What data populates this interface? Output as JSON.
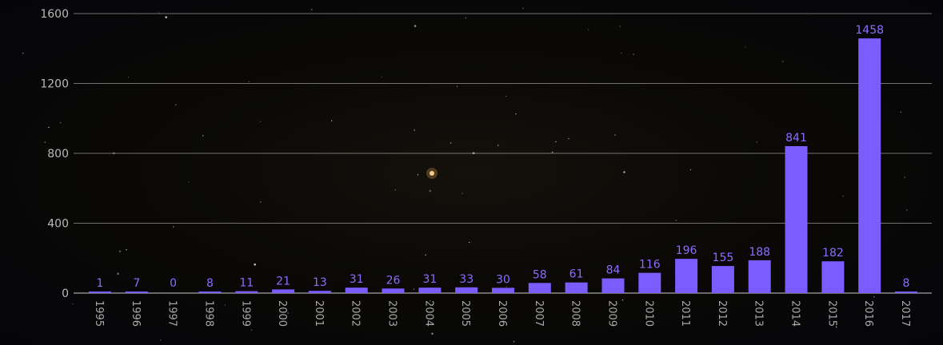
{
  "chart_data": {
    "type": "bar",
    "categories": [
      "1995",
      "1996",
      "1997",
      "1998",
      "1999",
      "2000",
      "2001",
      "2002",
      "2003",
      "2004",
      "2005",
      "2006",
      "2007",
      "2008",
      "2009",
      "2010",
      "2011",
      "2012",
      "2013",
      "2014",
      "2015",
      "2016",
      "2017"
    ],
    "values": [
      1,
      7,
      0,
      8,
      11,
      21,
      13,
      31,
      26,
      31,
      33,
      30,
      58,
      61,
      84,
      116,
      196,
      155,
      188,
      841,
      182,
      1458,
      8
    ],
    "ytick_labels": [
      "0",
      "400",
      "800",
      "1200",
      "1600"
    ],
    "ylim": [
      0,
      1600
    ],
    "grid": true,
    "title": "",
    "xlabel": "",
    "ylabel": "",
    "colors": {
      "bar": "#7b5cff",
      "label": "#8a6dff",
      "background": "#07070c"
    }
  }
}
